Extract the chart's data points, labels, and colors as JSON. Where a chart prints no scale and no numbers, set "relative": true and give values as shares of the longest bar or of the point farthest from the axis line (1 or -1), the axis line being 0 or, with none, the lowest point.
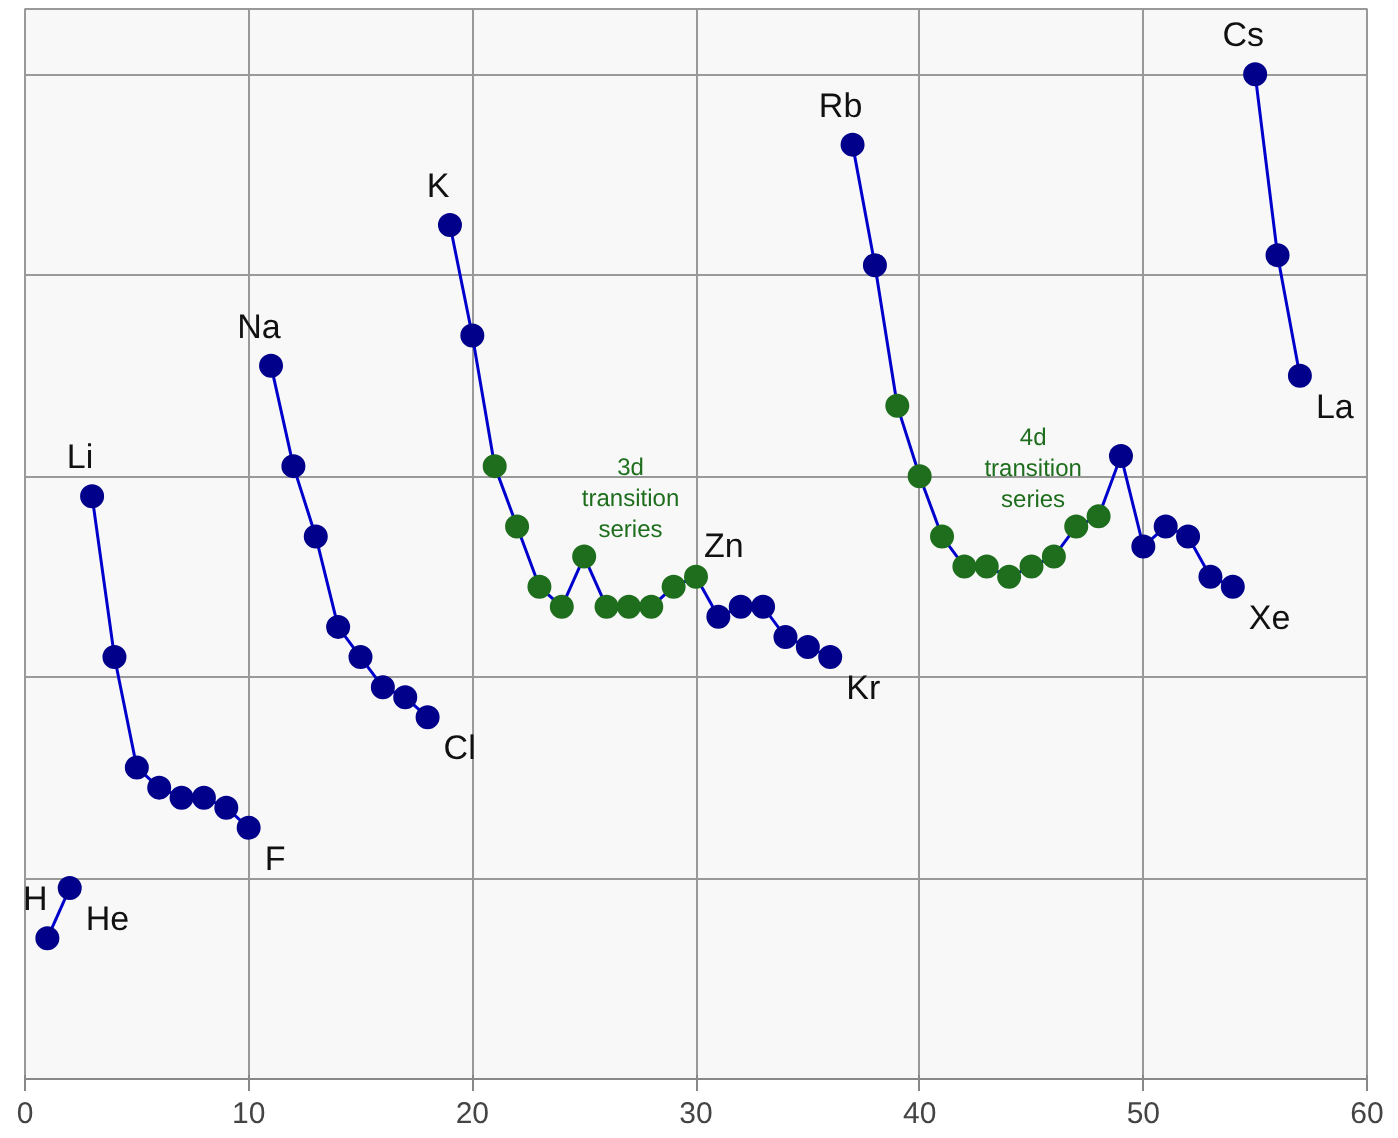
{
  "chart_data": {
    "type": "line",
    "relative": true,
    "xlim": [
      0,
      60
    ],
    "xticks": [
      0,
      10,
      20,
      30,
      40,
      50,
      60
    ],
    "tick_labels": "x",
    "grid": true,
    "marker": "circle",
    "line_style": "solid",
    "series": [
      {
        "color": "#0000cc",
        "x": [
          1,
          2
        ],
        "values": [
          0.14,
          0.19
        ],
        "colors": [
          "#00008b",
          "#00008b"
        ]
      },
      {
        "color": "#0000cc",
        "x": [
          3,
          4,
          5,
          6,
          7,
          8,
          9,
          10
        ],
        "values": [
          0.58,
          0.42,
          0.31,
          0.29,
          0.28,
          0.28,
          0.27,
          0.25
        ],
        "colors": [
          "#00008b",
          "#00008b",
          "#00008b",
          "#00008b",
          "#00008b",
          "#00008b",
          "#00008b",
          "#00008b"
        ]
      },
      {
        "color": "#0000cc",
        "x": [
          11,
          12,
          13,
          14,
          15,
          16,
          17,
          18
        ],
        "values": [
          0.71,
          0.61,
          0.54,
          0.45,
          0.42,
          0.39,
          0.38,
          0.36
        ],
        "colors": [
          "#00008b",
          "#00008b",
          "#00008b",
          "#00008b",
          "#00008b",
          "#00008b",
          "#00008b",
          "#00008b"
        ]
      },
      {
        "color": "#0000cc",
        "x": [
          19,
          20,
          21,
          22,
          23,
          24,
          25,
          26,
          27,
          28,
          29,
          30,
          31,
          32,
          33,
          34,
          35,
          36
        ],
        "values": [
          0.85,
          0.74,
          0.61,
          0.55,
          0.49,
          0.47,
          0.52,
          0.47,
          0.47,
          0.47,
          0.49,
          0.5,
          0.46,
          0.47,
          0.47,
          0.44,
          0.43,
          0.42
        ],
        "colors": [
          "#00008b",
          "#00008b",
          "#1e6e1e",
          "#1e6e1e",
          "#1e6e1e",
          "#1e6e1e",
          "#1e6e1e",
          "#1e6e1e",
          "#1e6e1e",
          "#1e6e1e",
          "#1e6e1e",
          "#1e6e1e",
          "#00008b",
          "#00008b",
          "#00008b",
          "#00008b",
          "#00008b",
          "#00008b"
        ]
      },
      {
        "color": "#0000cc",
        "x": [
          37,
          38,
          39,
          40,
          41,
          42,
          43,
          44,
          45,
          46,
          47,
          48,
          49,
          50,
          51,
          52,
          53,
          54
        ],
        "values": [
          0.93,
          0.81,
          0.67,
          0.6,
          0.54,
          0.51,
          0.51,
          0.5,
          0.51,
          0.52,
          0.55,
          0.56,
          0.62,
          0.53,
          0.55,
          0.54,
          0.5,
          0.49
        ],
        "colors": [
          "#00008b",
          "#00008b",
          "#1e6e1e",
          "#1e6e1e",
          "#1e6e1e",
          "#1e6e1e",
          "#1e6e1e",
          "#1e6e1e",
          "#1e6e1e",
          "#1e6e1e",
          "#1e6e1e",
          "#1e6e1e",
          "#00008b",
          "#00008b",
          "#00008b",
          "#00008b",
          "#00008b",
          "#00008b"
        ]
      },
      {
        "color": "#0000cc",
        "x": [
          55,
          56,
          57
        ],
        "values": [
          1,
          0.82,
          0.7
        ],
        "colors": [
          "#00008b",
          "#00008b",
          "#00008b"
        ]
      }
    ],
    "annotations": [
      {
        "text": "H",
        "x": 1,
        "y": 0.14
      },
      {
        "text": "He",
        "x": 2,
        "y": 0.19
      },
      {
        "text": "Li",
        "x": 3,
        "y": 0.58
      },
      {
        "text": "F",
        "x": 10,
        "y": 0.25
      },
      {
        "text": "Na",
        "x": 11,
        "y": 0.71
      },
      {
        "text": "Cl",
        "x": 18,
        "y": 0.36
      },
      {
        "text": "K",
        "x": 19,
        "y": 0.85
      },
      {
        "text": "Zn",
        "x": 30,
        "y": 0.5
      },
      {
        "text": "Kr",
        "x": 36,
        "y": 0.42
      },
      {
        "text": "Rb",
        "x": 37,
        "y": 0.93
      },
      {
        "text": "Xe",
        "x": 54,
        "y": 0.49
      },
      {
        "text": "La",
        "x": 57,
        "y": 0.7
      },
      {
        "text": "Cs",
        "x": 55,
        "y": 1
      },
      {
        "text": "3d\ntransition\nseries",
        "x": 26,
        "y": 0.47
      },
      {
        "text": "4d\ntransition\nseries",
        "x": 44,
        "y": 0.5
      }
    ]
  }
}
